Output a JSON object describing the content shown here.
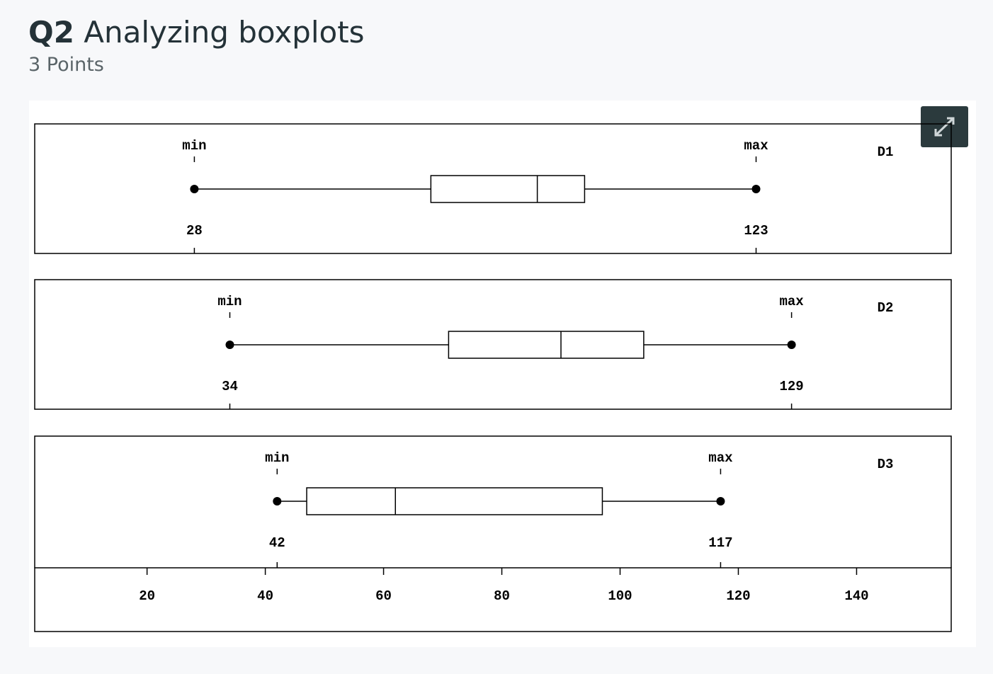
{
  "header": {
    "question": "Q2",
    "title": "Analyzing boxplots",
    "points": "3 Points"
  },
  "chart_data": {
    "type": "box",
    "min_label": "min",
    "max_label": "max",
    "series": [
      {
        "name": "D1",
        "min": 28,
        "q1": 68,
        "median": 86,
        "q3": 94,
        "max": 123
      },
      {
        "name": "D2",
        "min": 34,
        "q1": 71,
        "median": 90,
        "q3": 104,
        "max": 129
      },
      {
        "name": "D3",
        "min": 42,
        "q1": 47,
        "median": 62,
        "q3": 97,
        "max": 117
      }
    ],
    "xlim": [
      1,
      156
    ],
    "xticks": [
      20,
      40,
      60,
      80,
      100,
      120,
      140
    ],
    "color": "#000000"
  }
}
